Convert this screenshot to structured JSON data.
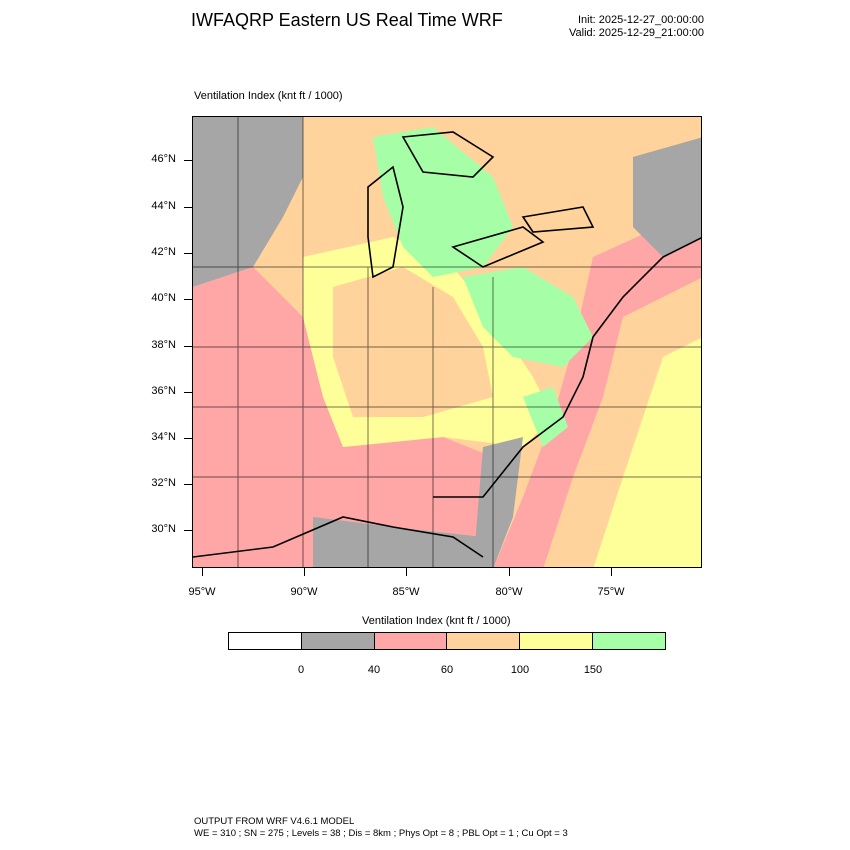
{
  "title": "IWFAQRP Eastern US Real Time WRF",
  "init": "Init: 2025-12-27_00:00:00",
  "valid": "Valid: 2025-12-29_21:00:00",
  "subtitle": "Ventilation Index   (knt ft / 1000)",
  "lat_labels": [
    "46°N",
    "44°N",
    "42°N",
    "40°N",
    "38°N",
    "36°N",
    "34°N",
    "32°N",
    "30°N"
  ],
  "lon_labels": [
    "95°W",
    "90°W",
    "85°W",
    "80°W",
    "75°W"
  ],
  "colorbar": {
    "title": "Ventilation Index  (knt ft / 1000)",
    "colors": [
      "#ffffff",
      "#a6a6a6",
      "#ffa6a6",
      "#ffd39b",
      "#ffff99",
      "#a6ffa6"
    ],
    "labels": [
      "0",
      "40",
      "60",
      "100",
      "150"
    ]
  },
  "footer": {
    "line1": "OUTPUT FROM WRF V4.6.1 MODEL",
    "line2": "WE = 310 ; SN = 275 ; Levels = 38 ; Dis = 8km ; Phys Opt = 8 ; PBL Opt = 1 ; Cu Opt = 3"
  }
}
